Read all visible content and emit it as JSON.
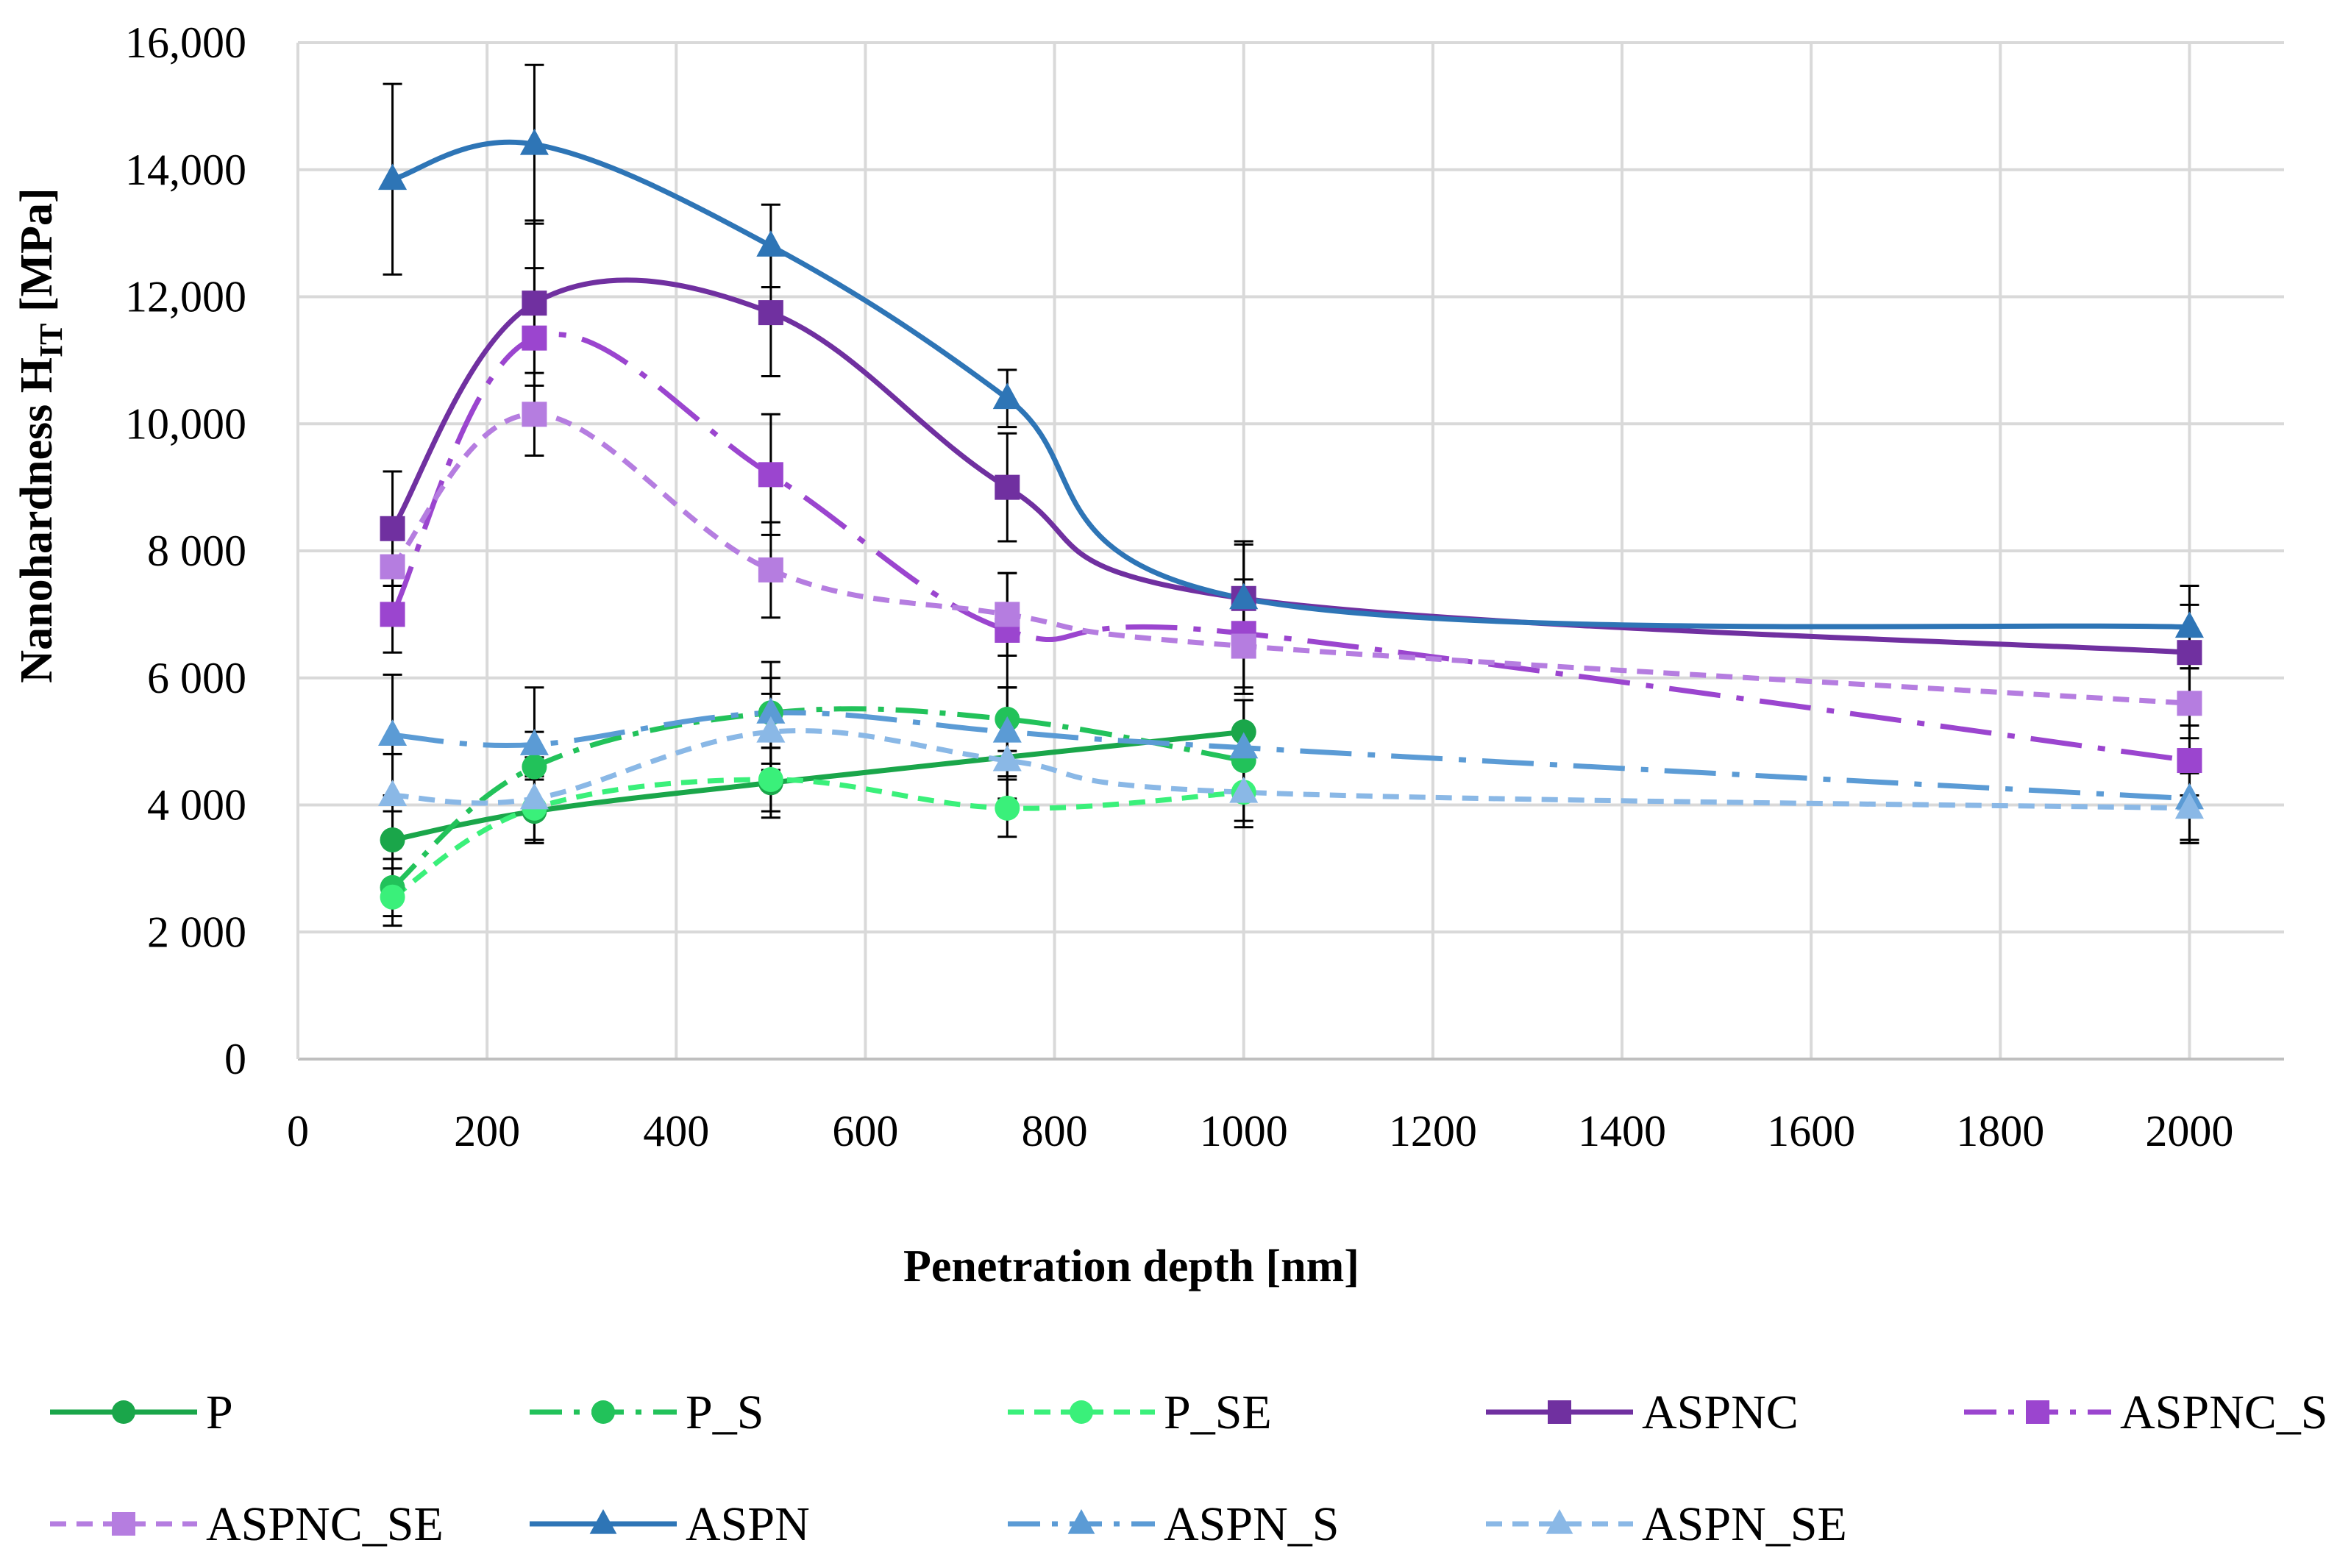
{
  "chart_data": {
    "type": "line",
    "title": "",
    "xlabel": "Penetration depth [nm]",
    "ylabel": {
      "main": "Nanohardness H",
      "sub": "IT",
      "unit": " [MPa]"
    },
    "xlim": [
      0,
      2100
    ],
    "ylim": [
      0,
      16000
    ],
    "x_ticks": [
      {
        "value": 0,
        "label": "0"
      },
      {
        "value": 200,
        "label": "200"
      },
      {
        "value": 400,
        "label": "400"
      },
      {
        "value": 600,
        "label": "600"
      },
      {
        "value": 800,
        "label": "800"
      },
      {
        "value": 1000,
        "label": "1000"
      },
      {
        "value": 1200,
        "label": "1200"
      },
      {
        "value": 1400,
        "label": "1400"
      },
      {
        "value": 1600,
        "label": "1600"
      },
      {
        "value": 1800,
        "label": "1800"
      },
      {
        "value": 2000,
        "label": "2000"
      }
    ],
    "y_ticks": [
      {
        "value": 0,
        "label": "0"
      },
      {
        "value": 2000,
        "label": "2 000"
      },
      {
        "value": 4000,
        "label": "4 000"
      },
      {
        "value": 6000,
        "label": "6 000"
      },
      {
        "value": 8000,
        "label": "8 000"
      },
      {
        "value": 10000,
        "label": "10,000"
      },
      {
        "value": 12000,
        "label": "12,000"
      },
      {
        "value": 14000,
        "label": "14,000"
      },
      {
        "value": 16000,
        "label": "16,000"
      }
    ],
    "grid": true,
    "legend_position": "bottom",
    "series": [
      {
        "name": "P",
        "color": "#1aa64a",
        "dash": "solid",
        "marker": "circle",
        "x": [
          100,
          250,
          500,
          1000
        ],
        "y": [
          3450,
          3900,
          4350,
          5150
        ],
        "err": [
          450,
          500,
          550,
          500
        ]
      },
      {
        "name": "P_S",
        "color": "#22c25a",
        "dash": "dashdot",
        "marker": "circle",
        "x": [
          100,
          250,
          500,
          750,
          1000
        ],
        "y": [
          2700,
          4600,
          5450,
          5350,
          4700
        ],
        "err": [
          450,
          550,
          550,
          500,
          450
        ]
      },
      {
        "name": "P_SE",
        "color": "#3af07a",
        "dash": "dash",
        "marker": "circle",
        "x": [
          100,
          250,
          500,
          750,
          1000
        ],
        "y": [
          2550,
          3950,
          4400,
          3950,
          4200
        ],
        "err": [
          450,
          500,
          500,
          450,
          450
        ]
      },
      {
        "name": "ASPNC",
        "color": "#7030a0",
        "dash": "solid",
        "marker": "square",
        "x": [
          100,
          250,
          500,
          750,
          1000,
          2000
        ],
        "y": [
          8350,
          11900,
          11750,
          9000,
          7250,
          6400
        ],
        "err": [
          900,
          1300,
          1000,
          850,
          850,
          750
        ]
      },
      {
        "name": "ASPNC_S",
        "color": "#9b45cf",
        "dash": "longdashdot",
        "marker": "square",
        "x": [
          100,
          250,
          500,
          750,
          1000,
          2000
        ],
        "y": [
          7000,
          11350,
          9200,
          6750,
          6700,
          4700
        ],
        "err": [
          600,
          1100,
          950,
          900,
          850,
          550
        ]
      },
      {
        "name": "ASPNC_SE",
        "color": "#b57de0",
        "dash": "dash",
        "marker": "square",
        "x": [
          100,
          250,
          500,
          750,
          1000,
          2000
        ],
        "y": [
          7750,
          10150,
          7700,
          7000,
          6500,
          5600
        ],
        "err": [
          600,
          650,
          750,
          650,
          750,
          550
        ]
      },
      {
        "name": "ASPN",
        "color": "#2e75b6",
        "dash": "solid",
        "marker": "triangle",
        "x": [
          100,
          250,
          500,
          750,
          1000,
          2000
        ],
        "y": [
          13850,
          14400,
          12800,
          10400,
          7250,
          6800
        ],
        "err": [
          1500,
          1250,
          650,
          450,
          900,
          650
        ]
      },
      {
        "name": "ASPN_S",
        "color": "#5b9bd5",
        "dash": "longdashdot",
        "marker": "triangle",
        "x": [
          100,
          250,
          500,
          750,
          1000,
          2000
        ],
        "y": [
          5100,
          4950,
          5450,
          5150,
          4900,
          4100
        ],
        "err": [
          950,
          900,
          800,
          700,
          750,
          650
        ]
      },
      {
        "name": "ASPN_SE",
        "color": "#8ab8e6",
        "dash": "dash",
        "marker": "triangle",
        "x": [
          100,
          250,
          500,
          750,
          1000,
          2000
        ],
        "y": [
          4150,
          4100,
          5150,
          4700,
          4200,
          3950
        ],
        "err": [
          650,
          650,
          600,
          600,
          550,
          550
        ]
      }
    ]
  }
}
